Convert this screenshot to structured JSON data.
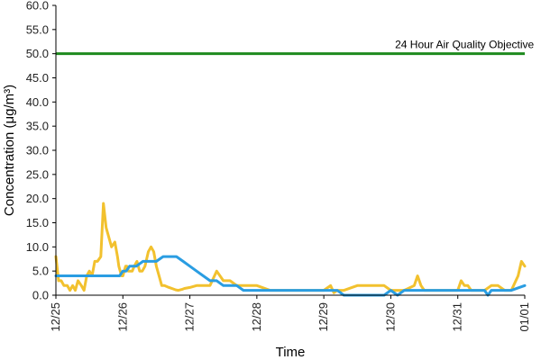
{
  "chart_data": {
    "type": "line",
    "title": "",
    "xlabel": "Time",
    "ylabel": "Concentration (μg/m³)",
    "ylim": [
      0,
      60
    ],
    "xlim": [
      "12/25",
      "01/01"
    ],
    "y_ticks": [
      "0.0",
      "5.0",
      "10.0",
      "15.0",
      "20.0",
      "25.0",
      "30.0",
      "35.0",
      "40.0",
      "45.0",
      "50.0",
      "55.0",
      "60.0"
    ],
    "x_ticks": [
      "12/25",
      "12/26",
      "12/27",
      "12/28",
      "12/29",
      "12/30",
      "12/31",
      "01/01"
    ],
    "grid": false,
    "legend": "none",
    "annotations": [
      {
        "text": "24 Hour Air Quality Objective",
        "x": 6.1,
        "y": 50
      }
    ],
    "reference_lines": [
      {
        "y": 50,
        "color": "#1e8a1e"
      }
    ],
    "series": [
      {
        "color": "#f2c12e",
        "x": [
          0.0,
          0.04,
          0.08,
          0.12,
          0.17,
          0.21,
          0.25,
          0.29,
          0.33,
          0.38,
          0.42,
          0.46,
          0.5,
          0.54,
          0.58,
          0.62,
          0.67,
          0.71,
          0.75,
          0.79,
          0.83,
          0.88,
          0.92,
          0.94,
          0.96,
          0.98,
          1.0,
          1.02,
          1.04,
          1.06,
          1.08,
          1.1,
          1.12,
          1.14,
          1.17,
          1.21,
          1.25,
          1.29,
          1.33,
          1.38,
          1.42,
          1.46,
          1.5,
          1.54,
          1.58,
          1.62,
          1.67,
          1.71,
          1.75,
          1.79,
          1.83,
          1.88,
          1.92,
          2.0,
          2.1,
          2.2,
          2.3,
          2.4,
          2.5,
          2.6,
          2.7,
          2.75,
          2.8,
          2.9,
          3.0,
          3.2,
          3.3,
          3.35,
          3.5,
          4.0,
          4.1,
          4.15,
          4.2,
          4.3,
          4.5,
          4.7,
          4.9,
          5.0,
          5.05,
          5.2,
          5.35,
          5.4,
          5.45,
          5.5,
          5.6,
          5.8,
          5.9,
          6.0,
          6.05,
          6.1,
          6.15,
          6.2,
          6.3,
          6.4,
          6.5,
          6.6,
          6.7,
          6.8,
          6.9,
          6.95,
          7.0
        ],
        "values": [
          8,
          3,
          3,
          2,
          2,
          1,
          2,
          1,
          3,
          2,
          1,
          4,
          5,
          4,
          7,
          7,
          8,
          19,
          14,
          12,
          10,
          11,
          8,
          6,
          5,
          4,
          4,
          5,
          6,
          6,
          5,
          5,
          5,
          5,
          6,
          7,
          5,
          5,
          6,
          9,
          10,
          9,
          6,
          4,
          2,
          2,
          1.7,
          1.5,
          1.3,
          1.1,
          1.0,
          1.2,
          1.4,
          1.6,
          2,
          2,
          2,
          5,
          3,
          3,
          2,
          2,
          2,
          2,
          2,
          1,
          1,
          1,
          1,
          1,
          2,
          0.5,
          1,
          1,
          2,
          2,
          2,
          1,
          1,
          1,
          2,
          4,
          2,
          1,
          1,
          1,
          1,
          1,
          3,
          2,
          2,
          1,
          1,
          1,
          2,
          2,
          1,
          1,
          4,
          7,
          6
        ]
      },
      {
        "color": "#2a9de2",
        "x": [
          0.0,
          0.4,
          0.9,
          0.95,
          1.0,
          1.05,
          1.1,
          1.2,
          1.3,
          1.4,
          1.5,
          1.6,
          1.7,
          1.8,
          1.9,
          2.0,
          2.1,
          2.2,
          2.3,
          2.4,
          2.5,
          2.6,
          2.7,
          2.8,
          3.0,
          3.2,
          3.5,
          3.8,
          4.0,
          4.2,
          4.3,
          4.4,
          4.6,
          4.9,
          5.0,
          5.1,
          5.2,
          5.5,
          5.8,
          6.0,
          6.2,
          6.4,
          6.45,
          6.5,
          6.8,
          7.0
        ],
        "values": [
          4,
          4,
          4,
          4,
          5,
          5,
          6,
          6,
          7,
          7,
          7,
          8,
          8,
          8,
          7,
          6,
          5,
          4,
          3,
          3,
          2,
          2,
          2,
          1,
          1,
          1,
          1,
          1,
          1,
          1,
          0,
          0,
          0,
          0,
          1,
          0,
          1,
          1,
          1,
          1,
          1,
          1,
          0,
          1,
          1,
          2
        ]
      }
    ]
  }
}
